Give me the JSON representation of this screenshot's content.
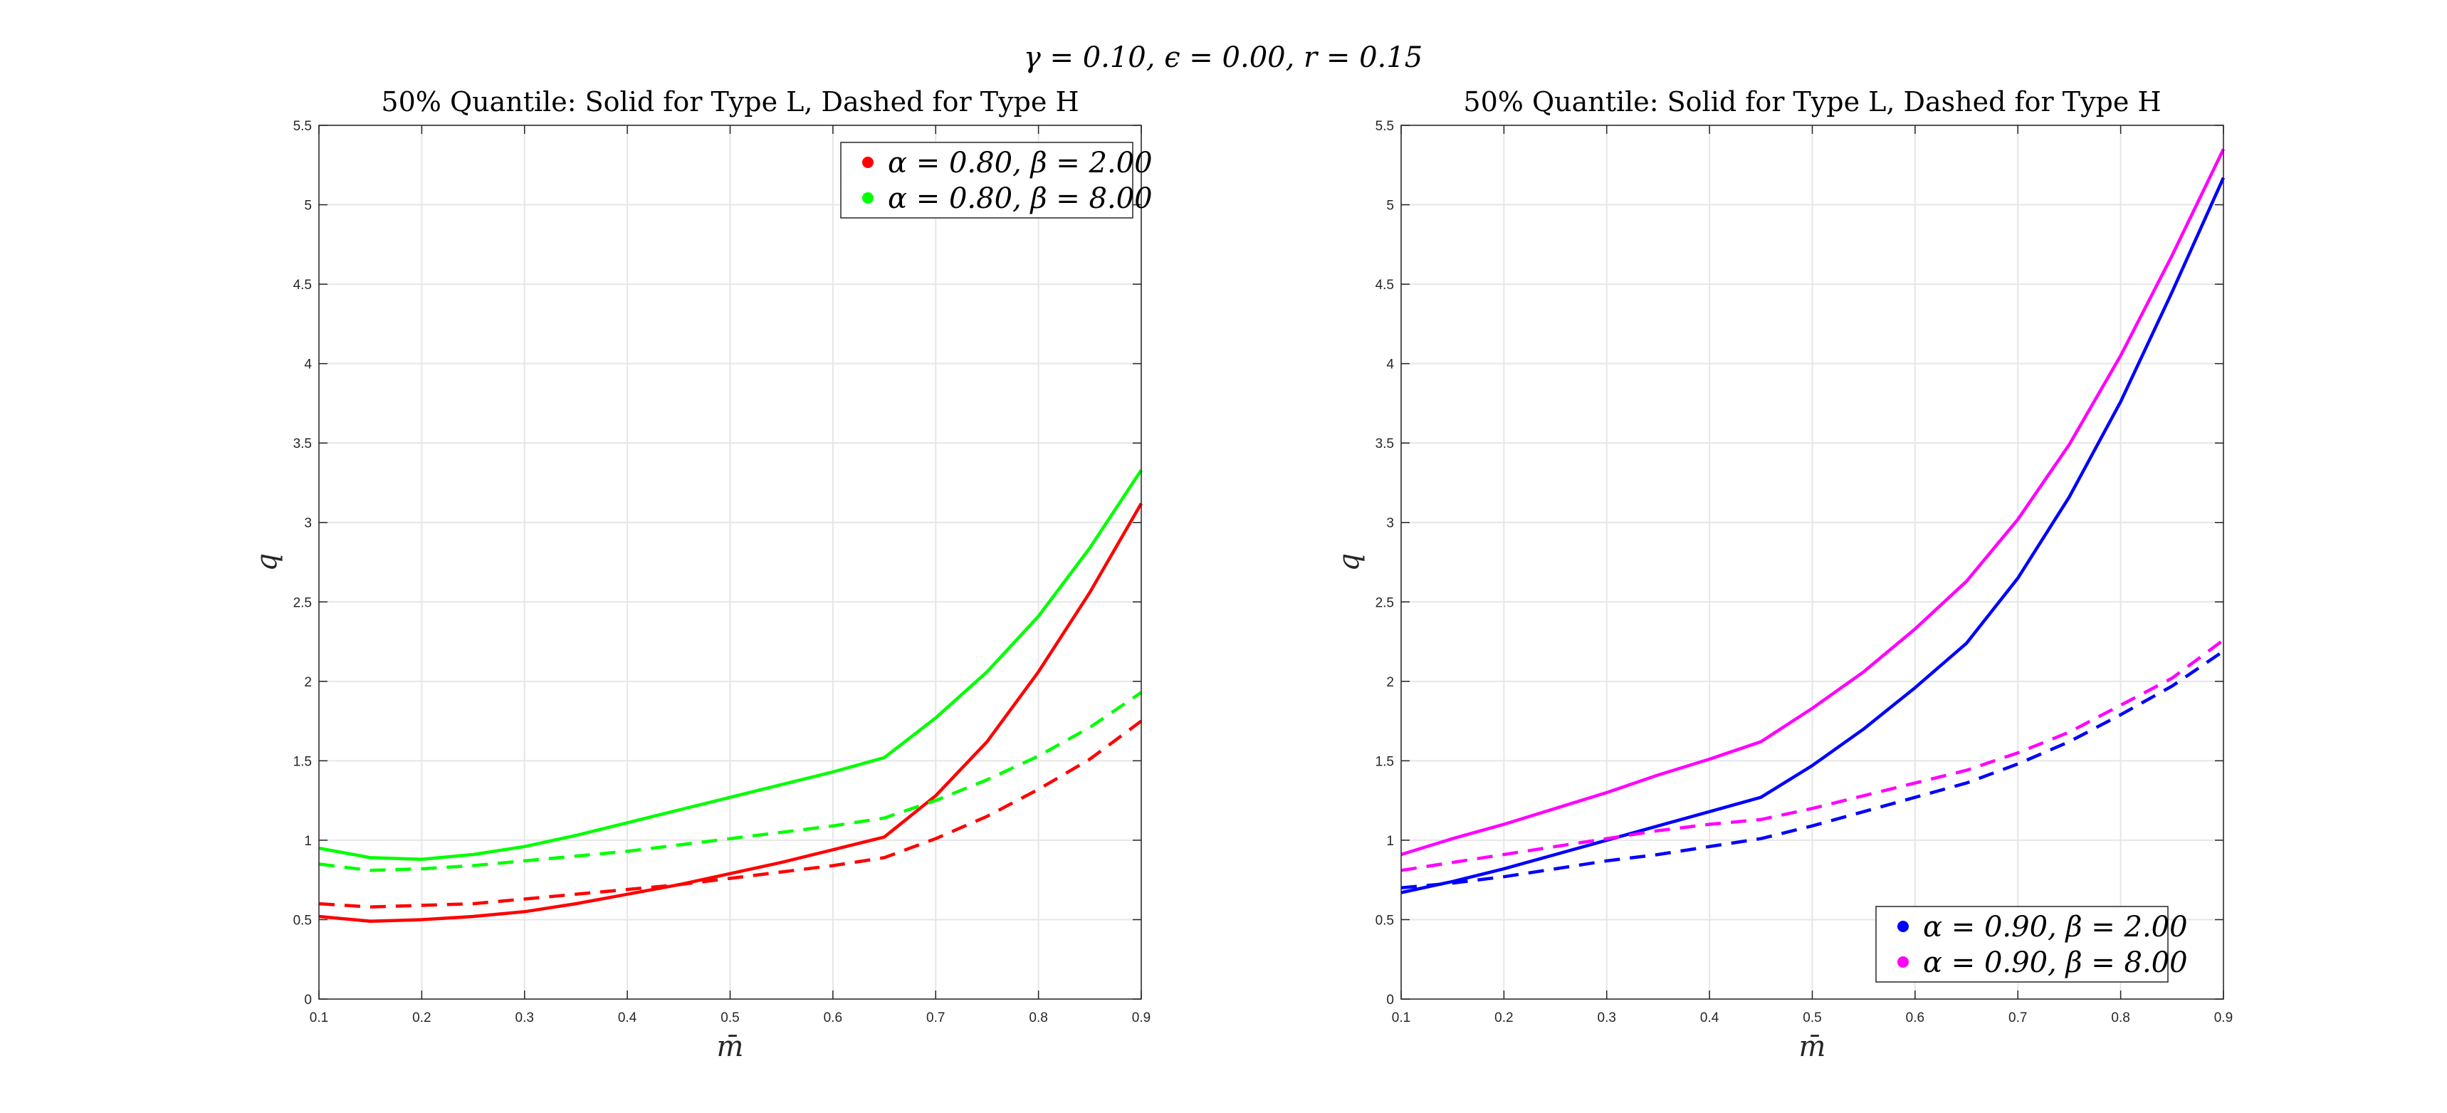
{
  "figure": {
    "suptitle": "γ = 0.10, ϵ = 0.00, r = 0.15"
  },
  "chart_data": [
    {
      "type": "line",
      "title": "50% Quantile: Solid for Type L, Dashed for Type H",
      "xlabel": "m̄",
      "ylabel": "q",
      "xlim": [
        0.1,
        0.9
      ],
      "ylim": [
        0,
        5.5
      ],
      "xticks": [
        "0.1",
        "0.2",
        "0.3",
        "0.4",
        "0.5",
        "0.6",
        "0.7",
        "0.8",
        "0.9"
      ],
      "yticks": [
        "0",
        "0.5",
        "1",
        "1.5",
        "2",
        "2.5",
        "3",
        "3.5",
        "4",
        "4.5",
        "5",
        "5.5"
      ],
      "grid": true,
      "legend_position": "top-right",
      "x": [
        0.1,
        0.15,
        0.2,
        0.25,
        0.3,
        0.35,
        0.4,
        0.45,
        0.5,
        0.55,
        0.6,
        0.65,
        0.7,
        0.75,
        0.8,
        0.85,
        0.9
      ],
      "series": [
        {
          "name": "α = 0.80, β = 2.00",
          "color": "#ff0000",
          "style": "solid",
          "legend": true,
          "values": [
            0.52,
            0.49,
            0.5,
            0.52,
            0.55,
            0.6,
            0.66,
            0.72,
            0.79,
            0.86,
            0.94,
            1.02,
            1.28,
            1.62,
            2.06,
            2.56,
            3.12
          ]
        },
        {
          "color": "#ff0000",
          "style": "dashed",
          "legend": false,
          "values": [
            0.6,
            0.58,
            0.59,
            0.6,
            0.63,
            0.66,
            0.69,
            0.72,
            0.76,
            0.8,
            0.84,
            0.89,
            1.01,
            1.15,
            1.32,
            1.51,
            1.75
          ]
        },
        {
          "name": "α = 0.80, β = 8.00",
          "color": "#00ff00",
          "style": "solid",
          "legend": true,
          "values": [
            0.95,
            0.89,
            0.88,
            0.91,
            0.96,
            1.03,
            1.11,
            1.19,
            1.27,
            1.35,
            1.43,
            1.52,
            1.77,
            2.06,
            2.41,
            2.84,
            3.33
          ]
        },
        {
          "color": "#00ff00",
          "style": "dashed",
          "legend": false,
          "values": [
            0.85,
            0.81,
            0.82,
            0.84,
            0.87,
            0.9,
            0.93,
            0.97,
            1.01,
            1.05,
            1.09,
            1.14,
            1.25,
            1.38,
            1.53,
            1.71,
            1.93
          ]
        }
      ]
    },
    {
      "type": "line",
      "title": "50% Quantile: Solid for Type L, Dashed for Type H",
      "xlabel": "m̄",
      "ylabel": "q",
      "xlim": [
        0.1,
        0.9
      ],
      "ylim": [
        0,
        5.5
      ],
      "xticks": [
        "0.1",
        "0.2",
        "0.3",
        "0.4",
        "0.5",
        "0.6",
        "0.7",
        "0.8",
        "0.9"
      ],
      "yticks": [
        "0",
        "0.5",
        "1",
        "1.5",
        "2",
        "2.5",
        "3",
        "3.5",
        "4",
        "4.5",
        "5",
        "5.5"
      ],
      "grid": true,
      "legend_position": "bottom-right",
      "x": [
        0.1,
        0.15,
        0.2,
        0.25,
        0.3,
        0.35,
        0.4,
        0.45,
        0.5,
        0.55,
        0.6,
        0.65,
        0.7,
        0.75,
        0.8,
        0.85,
        0.9
      ],
      "series": [
        {
          "name": "α = 0.90, β = 2.00",
          "color": "#0000ff",
          "style": "solid",
          "legend": true,
          "values": [
            0.67,
            0.74,
            0.82,
            0.91,
            1.0,
            1.09,
            1.18,
            1.27,
            1.47,
            1.7,
            1.96,
            2.24,
            2.65,
            3.16,
            3.76,
            4.45,
            5.17
          ]
        },
        {
          "color": "#0000ff",
          "style": "dashed",
          "legend": false,
          "values": [
            0.7,
            0.73,
            0.77,
            0.82,
            0.87,
            0.91,
            0.96,
            1.01,
            1.09,
            1.18,
            1.27,
            1.36,
            1.48,
            1.62,
            1.79,
            1.97,
            2.19
          ]
        },
        {
          "name": "α = 0.90, β = 8.00",
          "color": "#ff00ff",
          "style": "solid",
          "legend": true,
          "values": [
            0.91,
            1.01,
            1.1,
            1.2,
            1.3,
            1.41,
            1.51,
            1.62,
            1.83,
            2.06,
            2.33,
            2.63,
            3.02,
            3.49,
            4.05,
            4.68,
            5.35
          ]
        },
        {
          "color": "#ff00ff",
          "style": "dashed",
          "legend": false,
          "values": [
            0.81,
            0.86,
            0.91,
            0.96,
            1.01,
            1.06,
            1.1,
            1.13,
            1.2,
            1.28,
            1.36,
            1.44,
            1.55,
            1.68,
            1.85,
            2.02,
            2.26
          ]
        }
      ]
    }
  ]
}
